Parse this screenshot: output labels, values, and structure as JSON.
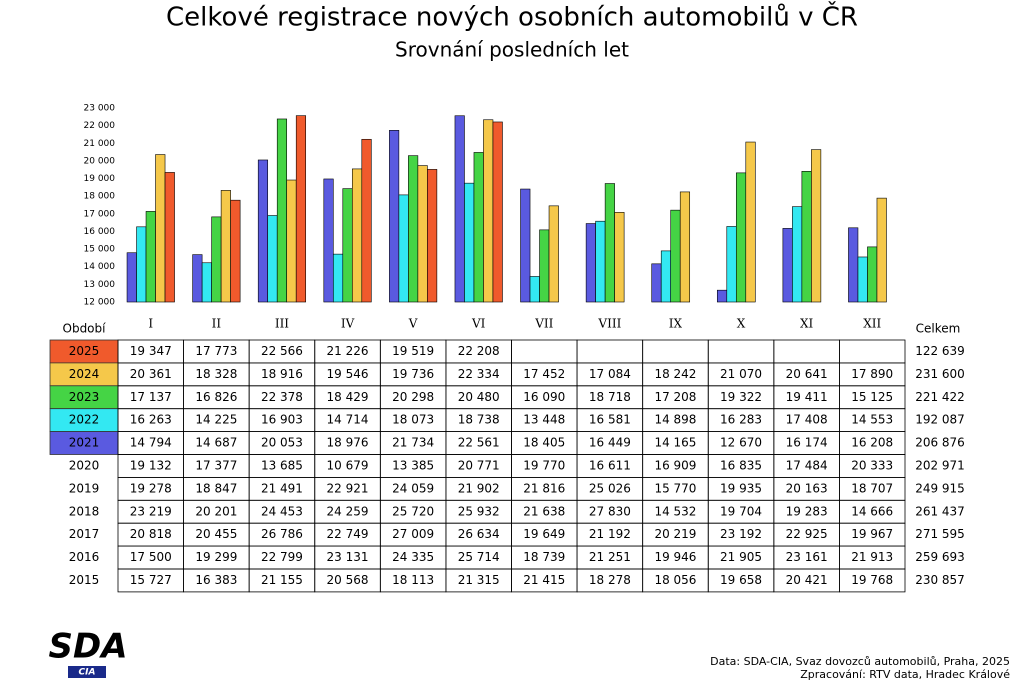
{
  "chart_data": {
    "type": "bar",
    "title": "Celkové registrace nových osobních automobilů v ČR",
    "subtitle": "Srovnání posledních let",
    "categories": [
      "I",
      "II",
      "III",
      "IV",
      "V",
      "VI",
      "VII",
      "VIII",
      "IX",
      "X",
      "XI",
      "XII"
    ],
    "ylim": [
      12000,
      23000
    ],
    "yticks": [
      {
        "value": 12000,
        "label": "12 000"
      },
      {
        "value": 13000,
        "label": "13 000"
      },
      {
        "value": 14000,
        "label": "14 000"
      },
      {
        "value": 15000,
        "label": "15 000"
      },
      {
        "value": 16000,
        "label": "16 000"
      },
      {
        "value": 17000,
        "label": "17 000"
      },
      {
        "value": 18000,
        "label": "18 000"
      },
      {
        "value": 19000,
        "label": "19 000"
      },
      {
        "value": 20000,
        "label": "20 000"
      },
      {
        "value": 21000,
        "label": "21 000"
      },
      {
        "value": 22000,
        "label": "22 000"
      },
      {
        "value": 23000,
        "label": "23 000"
      }
    ],
    "period_label": "Období",
    "total_label": "Celkem",
    "series": [
      {
        "name": "2021",
        "color": "#5a5ae0",
        "values": [
          14794,
          14687,
          20053,
          18976,
          21734,
          22561,
          18405,
          16449,
          14165,
          12670,
          16174,
          16208
        ],
        "value_labels": [
          "14 794",
          "14 687",
          "20 053",
          "18 976",
          "21 734",
          "22 561",
          "18 405",
          "16 449",
          "14 165",
          "12 670",
          "16 174",
          "16 208"
        ],
        "total": "206 876"
      },
      {
        "name": "2022",
        "color": "#33e8f2",
        "values": [
          16263,
          14225,
          16903,
          14714,
          18073,
          18738,
          13448,
          16581,
          14898,
          16283,
          17408,
          14553
        ],
        "value_labels": [
          "16 263",
          "14 225",
          "16 903",
          "14 714",
          "18 073",
          "18 738",
          "13 448",
          "16 581",
          "14 898",
          "16 283",
          "17 408",
          "14 553"
        ],
        "total": "192 087"
      },
      {
        "name": "2023",
        "color": "#45d445",
        "values": [
          17137,
          16826,
          22378,
          18429,
          20298,
          20480,
          16090,
          18718,
          17208,
          19322,
          19411,
          15125
        ],
        "value_labels": [
          "17 137",
          "16 826",
          "22 378",
          "18 429",
          "20 298",
          "20 480",
          "16 090",
          "18 718",
          "17 208",
          "19 322",
          "19 411",
          "15 125"
        ],
        "total": "221 422"
      },
      {
        "name": "2024",
        "color": "#f5c84a",
        "values": [
          20361,
          18328,
          18916,
          19546,
          19736,
          22334,
          17452,
          17084,
          18242,
          21070,
          20641,
          17890
        ],
        "value_labels": [
          "20 361",
          "18 328",
          "18 916",
          "19 546",
          "19 736",
          "22 334",
          "17 452",
          "17 084",
          "18 242",
          "21 070",
          "20 641",
          "17 890"
        ],
        "total": "231 600"
      },
      {
        "name": "2025",
        "color": "#f05a2c",
        "values": [
          19347,
          17773,
          22566,
          21226,
          19519,
          22208,
          null,
          null,
          null,
          null,
          null,
          null
        ],
        "value_labels": [
          "19 347",
          "17 773",
          "22 566",
          "21 226",
          "19 519",
          "22 208",
          null,
          null,
          null,
          null,
          null,
          null
        ],
        "total": "122 639"
      }
    ]
  },
  "table": {
    "rows": [
      {
        "year": "2020",
        "values": [
          "19 132",
          "17 377",
          "13 685",
          "10 679",
          "13 385",
          "20 771",
          "19 770",
          "16 611",
          "16 909",
          "16 835",
          "17 484",
          "20 333"
        ],
        "total": "202 971"
      },
      {
        "year": "2019",
        "values": [
          "19 278",
          "18 847",
          "21 491",
          "22 921",
          "24 059",
          "21 902",
          "21 816",
          "25 026",
          "15 770",
          "19 935",
          "20 163",
          "18 707"
        ],
        "total": "249 915"
      },
      {
        "year": "2018",
        "values": [
          "23 219",
          "20 201",
          "24 453",
          "24 259",
          "25 720",
          "25 932",
          "21 638",
          "27 830",
          "14 532",
          "19 704",
          "19 283",
          "14 666"
        ],
        "total": "261 437"
      },
      {
        "year": "2017",
        "values": [
          "20 818",
          "20 455",
          "26 786",
          "22 749",
          "27 009",
          "26 634",
          "19 649",
          "21 192",
          "20 219",
          "23 192",
          "22 925",
          "19 967"
        ],
        "total": "271 595"
      },
      {
        "year": "2016",
        "values": [
          "17 500",
          "19 299",
          "22 799",
          "23 131",
          "24 335",
          "25 714",
          "18 739",
          "21 251",
          "19 946",
          "21 905",
          "23 161",
          "21 913"
        ],
        "total": "259 693"
      },
      {
        "year": "2015",
        "values": [
          "15 727",
          "16 383",
          "21 155",
          "20 568",
          "18 113",
          "21 315",
          "21 415",
          "18 278",
          "18 056",
          "19 658",
          "20 421",
          "19 768"
        ],
        "total": "230 857"
      }
    ]
  },
  "logo": {
    "main": "SDA",
    "sub": "CIA"
  },
  "footer": {
    "source": "Data: SDA-CIA, Svaz dovozců automobilů, Praha, 2025",
    "processing": "Zpracování: RTV data, Hradec Králové"
  }
}
